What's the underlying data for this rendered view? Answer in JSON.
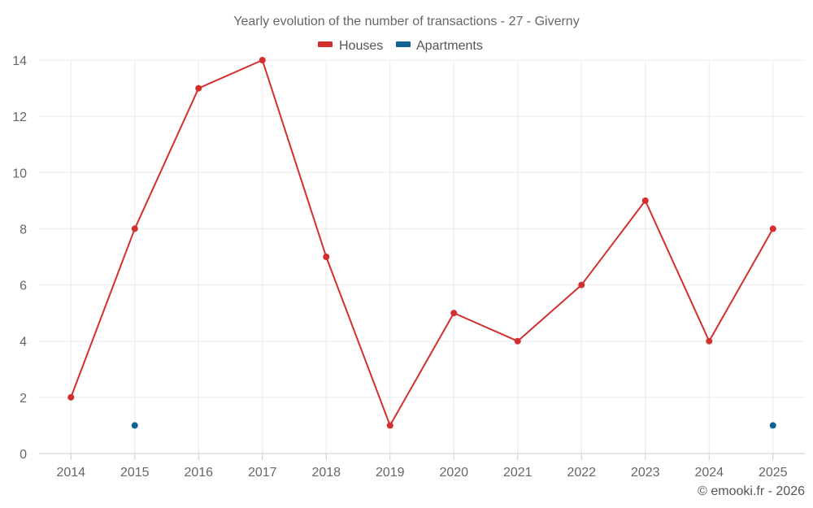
{
  "chart_data": {
    "type": "line",
    "title": "Yearly evolution of the number of transactions - 27 - Giverny",
    "categories": [
      "2014",
      "2015",
      "2016",
      "2017",
      "2018",
      "2019",
      "2020",
      "2021",
      "2022",
      "2023",
      "2024",
      "2025"
    ],
    "series": [
      {
        "name": "Houses",
        "color": "#d32f2f",
        "values": [
          2,
          8,
          13,
          14,
          7,
          1,
          5,
          4,
          6,
          9,
          4,
          8
        ]
      },
      {
        "name": "Apartments",
        "color": "#0f6496",
        "values": [
          null,
          1,
          null,
          null,
          null,
          null,
          null,
          null,
          null,
          null,
          null,
          1
        ]
      }
    ],
    "ylim": [
      0,
      14
    ],
    "yticks": [
      "0",
      "2",
      "4",
      "6",
      "8",
      "10",
      "12",
      "14"
    ],
    "xlabel": "",
    "ylabel": "",
    "legend_position": "top-center",
    "grid": true
  },
  "credit": "© emooki.fr - 2026"
}
